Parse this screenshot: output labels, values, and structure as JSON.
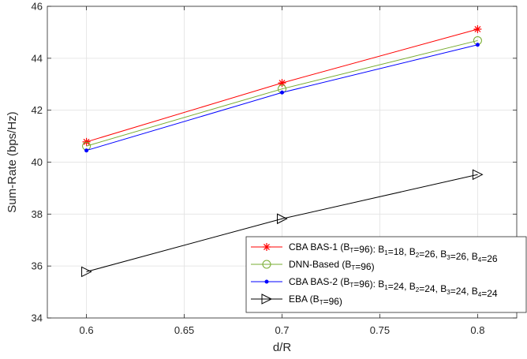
{
  "chart_data": {
    "type": "line",
    "title": "",
    "xlabel": "d/R",
    "ylabel": "Sum-Rate (bps/Hz)",
    "xlim": [
      0.58,
      0.82
    ],
    "ylim": [
      34,
      46
    ],
    "x_ticks": [
      "0.6",
      "0.65",
      "0.7",
      "0.75",
      "0.8"
    ],
    "y_ticks": [
      "34",
      "36",
      "38",
      "40",
      "42",
      "44",
      "46"
    ],
    "grid": true,
    "legend_position": "bottom-right",
    "x": [
      0.6,
      0.7,
      0.8
    ],
    "series": [
      {
        "name": "CBA BAS-1 (B_T=96): B_1=18, B_2=26, B_3=26, B_4=26",
        "legend_parts": [
          [
            "CBA BAS-1 (B",
            ""
          ],
          [
            "T",
            "sub"
          ],
          [
            "=96): B",
            ""
          ],
          [
            "1",
            "sub"
          ],
          [
            "=18, B",
            ""
          ],
          [
            "2",
            "sub"
          ],
          [
            "=26, B",
            ""
          ],
          [
            "3",
            "sub"
          ],
          [
            "=26, B",
            ""
          ],
          [
            "4",
            "sub"
          ],
          [
            "=26",
            ""
          ]
        ],
        "color": "#ff0000",
        "marker": "asterisk",
        "values": [
          40.78,
          43.05,
          45.12
        ]
      },
      {
        "name": "DNN-Based (B_T=96)",
        "legend_parts": [
          [
            "DNN-Based (B",
            ""
          ],
          [
            "T",
            "sub"
          ],
          [
            "=96)",
            ""
          ]
        ],
        "color": "#77ac30",
        "marker": "circle",
        "values": [
          40.62,
          42.82,
          44.68
        ]
      },
      {
        "name": "CBA BAS-2 (B_T=96): B_1=24, B_2=24, B_3=24, B_4=24",
        "legend_parts": [
          [
            "CBA BAS-2 (B",
            ""
          ],
          [
            "T",
            "sub"
          ],
          [
            "=96): B",
            ""
          ],
          [
            "1",
            "sub"
          ],
          [
            "=24, B",
            ""
          ],
          [
            "2",
            "sub"
          ],
          [
            "=24, B",
            ""
          ],
          [
            "3",
            "sub"
          ],
          [
            "=24, B",
            ""
          ],
          [
            "4",
            "sub"
          ],
          [
            "=24",
            ""
          ]
        ],
        "color": "#0000ff",
        "marker": "dot",
        "values": [
          40.45,
          42.68,
          44.52
        ]
      },
      {
        "name": "EBA (B_T=96)",
        "legend_parts": [
          [
            "EBA (B",
            ""
          ],
          [
            "T",
            "sub"
          ],
          [
            "=96)",
            ""
          ]
        ],
        "color": "#000000",
        "marker": "triangle-right",
        "values": [
          35.78,
          37.82,
          39.52
        ]
      }
    ]
  }
}
